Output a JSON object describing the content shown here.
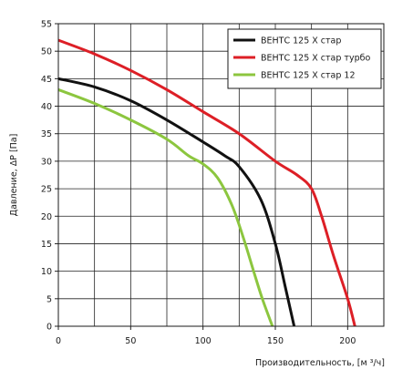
{
  "chart_data": {
    "type": "line",
    "xlabel": "Производительность, [м ³/ч]",
    "ylabel": "Давление, ΔP [Па]",
    "xlim": [
      0,
      225
    ],
    "ylim": [
      0,
      55
    ],
    "x_ticks": [
      0,
      50,
      100,
      150,
      200
    ],
    "y_ticks": [
      0,
      5,
      10,
      15,
      20,
      25,
      30,
      35,
      40,
      45,
      50,
      55
    ],
    "grid": true,
    "legend_position": "top-right",
    "series": [
      {
        "name": "ВЕНТС 125 Х стар",
        "color": "#111111",
        "points": [
          [
            0,
            45
          ],
          [
            25,
            43.5
          ],
          [
            50,
            41
          ],
          [
            75,
            37.5
          ],
          [
            100,
            33.5
          ],
          [
            115,
            31
          ],
          [
            125,
            29
          ],
          [
            140,
            23
          ],
          [
            150,
            15
          ],
          [
            157,
            7
          ],
          [
            163,
            0
          ]
        ]
      },
      {
        "name": "ВЕНТС 125 Х стар турбо",
        "color": "#dd1f26",
        "points": [
          [
            0,
            52
          ],
          [
            25,
            49.5
          ],
          [
            50,
            46.5
          ],
          [
            75,
            43
          ],
          [
            100,
            39
          ],
          [
            125,
            35
          ],
          [
            150,
            30
          ],
          [
            165,
            27.5
          ],
          [
            175,
            25
          ],
          [
            182,
            20
          ],
          [
            190,
            13
          ],
          [
            200,
            5
          ],
          [
            205,
            0
          ]
        ]
      },
      {
        "name": "ВЕНТС 125 Х стар 12",
        "color": "#8cc63f",
        "points": [
          [
            0,
            43
          ],
          [
            25,
            40.5
          ],
          [
            50,
            37.5
          ],
          [
            75,
            34
          ],
          [
            90,
            31
          ],
          [
            100,
            29.5
          ],
          [
            110,
            27
          ],
          [
            120,
            22
          ],
          [
            128,
            16
          ],
          [
            135,
            10
          ],
          [
            141,
            5
          ],
          [
            148,
            0
          ]
        ]
      }
    ]
  }
}
